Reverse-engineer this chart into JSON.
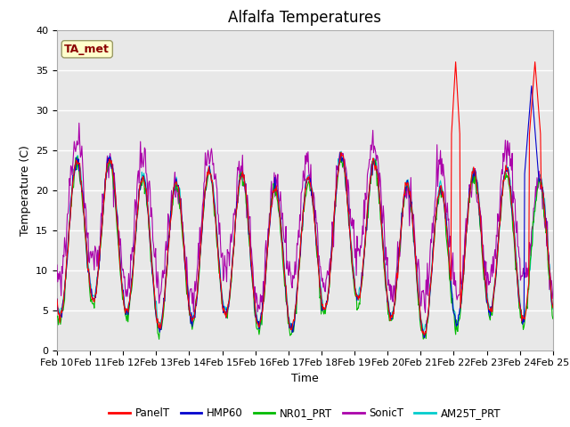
{
  "title": "Alfalfa Temperatures",
  "xlabel": "Time",
  "ylabel": "Temperature (C)",
  "ylim": [
    0,
    40
  ],
  "x_tick_labels": [
    "Feb 10",
    "Feb 11",
    "Feb 12",
    "Feb 13",
    "Feb 14",
    "Feb 15",
    "Feb 16",
    "Feb 17",
    "Feb 18",
    "Feb 19",
    "Feb 20",
    "Feb 21",
    "Feb 22",
    "Feb 23",
    "Feb 24",
    "Feb 25"
  ],
  "annotation_text": "TA_met",
  "annotation_color": "#8B0000",
  "annotation_bg": "#FFFFCC",
  "series_colors": {
    "PanelT": "#FF0000",
    "HMP60": "#0000CD",
    "NR01_PRT": "#00BB00",
    "SonicT": "#AA00AA",
    "AM25T_PRT": "#00CCCC"
  },
  "bg_color": "#E8E8E8",
  "grid_color": "#FFFFFF",
  "title_fontsize": 12,
  "axis_fontsize": 9,
  "tick_fontsize": 8
}
